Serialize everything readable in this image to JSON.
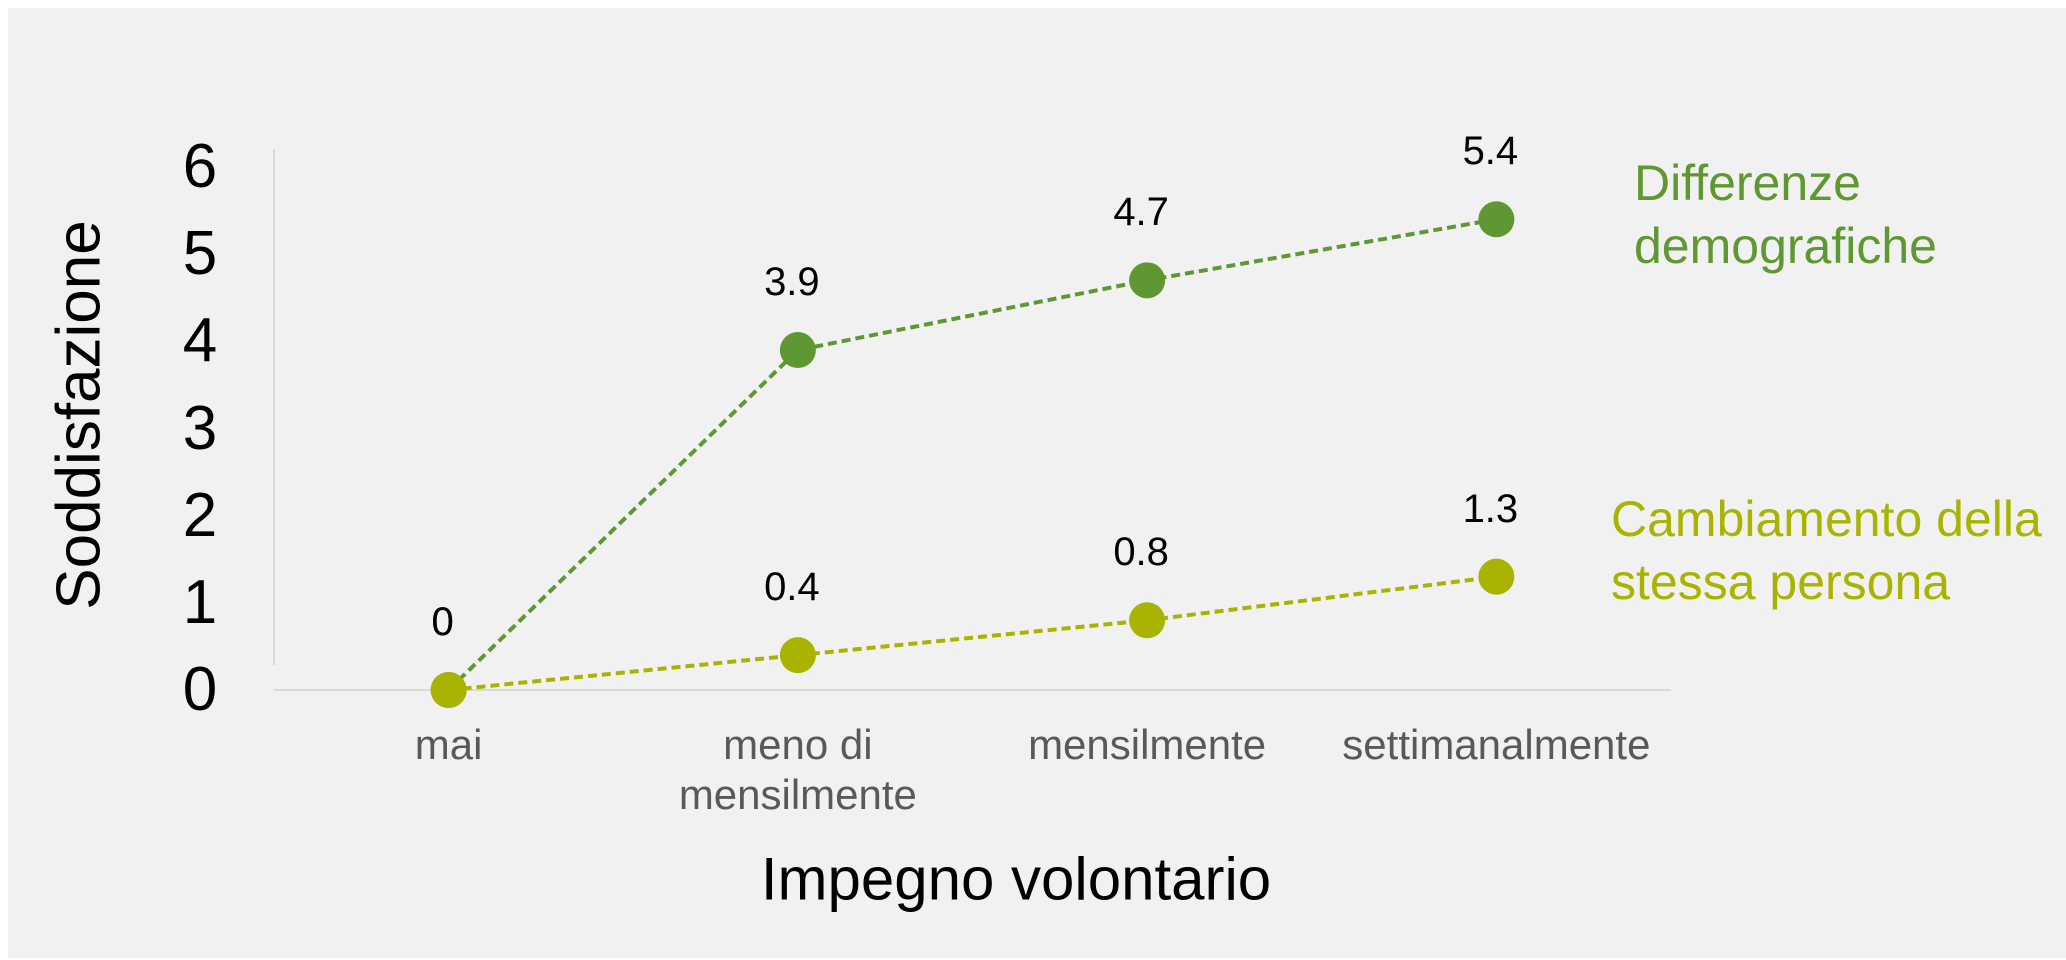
{
  "chart_data": {
    "type": "line",
    "x_label": "Impegno volontario",
    "y_label": "Soddisfazione",
    "categories": [
      "mai",
      "meno di mensilmente",
      "mensilmente",
      "settimanalmente"
    ],
    "series": [
      {
        "name": "Differenze demografiche",
        "color": "#5f9732",
        "values": [
          0,
          3.9,
          4.7,
          5.4
        ]
      },
      {
        "name": "Cambiamento della stessa persona",
        "color": "#a8b400",
        "values": [
          0,
          0.4,
          0.8,
          1.3
        ]
      }
    ],
    "ylim": [
      0,
      6
    ],
    "yticks": [
      0,
      1,
      2,
      3,
      4,
      5,
      6
    ],
    "grid": false,
    "line_style": "dashed",
    "legend": "right"
  }
}
